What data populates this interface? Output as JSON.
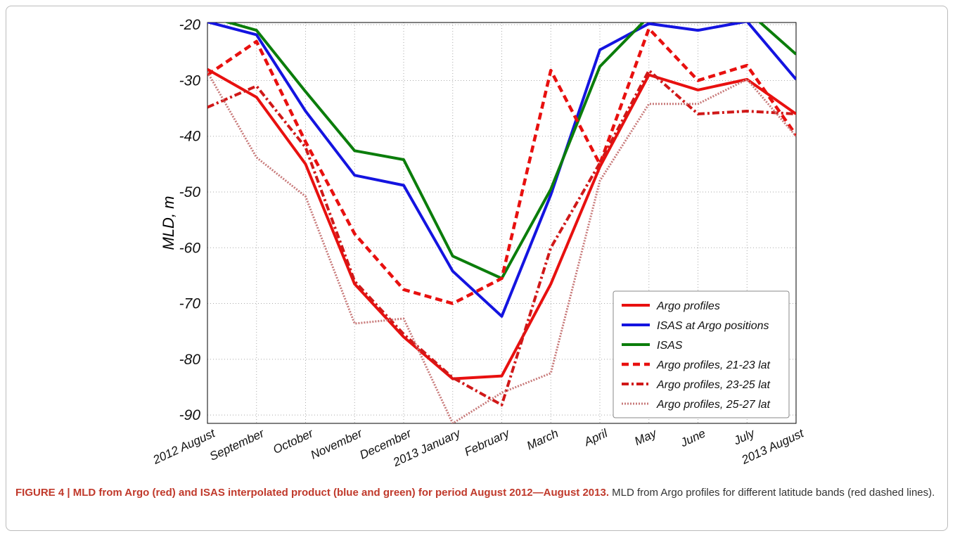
{
  "chart_data": {
    "type": "line",
    "y_label": "MLD, m",
    "categories": [
      "2012 August",
      "September",
      "October",
      "November",
      "December",
      "2013 January",
      "February",
      "March",
      "April",
      "May",
      "June",
      "July",
      "2013 August"
    ],
    "ylim": [
      -91.5,
      -19.6
    ],
    "yticks": [
      -20,
      -30,
      -40,
      -50,
      -60,
      -70,
      -80,
      -90
    ],
    "grid": true,
    "legend": "lower right",
    "series": [
      {
        "name": "Argo profiles",
        "color": "#e8100f",
        "dash": "solid",
        "values": [
          -28,
          -33,
          -45,
          -66.5,
          -76,
          -83.5,
          -83,
          -66.5,
          -45.5,
          -29,
          -31.7,
          -29.8,
          -36
        ]
      },
      {
        "name": "ISAS at Argo positions",
        "color": "#1414e0",
        "dash": "solid",
        "values": [
          -19.5,
          -21.8,
          -35.5,
          -47,
          -48.8,
          -64.2,
          -72.3,
          -50.5,
          -24.5,
          -19.8,
          -21,
          -19.4,
          -29.8
        ]
      },
      {
        "name": "ISAS",
        "color": "#0b7d0b",
        "dash": "solid",
        "values": [
          -18.5,
          -21,
          -32,
          -42.6,
          -44.2,
          -61.5,
          -65.5,
          -49.5,
          -27.5,
          -18.5,
          -18.5,
          -17.5,
          -25.3
        ]
      },
      {
        "name": "Argo profiles, 21-23 lat",
        "color": "#e8100f",
        "dash": "dashed",
        "values": [
          -29,
          -23,
          -41,
          -57.5,
          -67.5,
          -70,
          -65.5,
          -28.2,
          -45,
          -20.7,
          -30,
          -27.3,
          -39.8
        ]
      },
      {
        "name": "Argo profiles, 23-25 lat",
        "color": "#d01818",
        "dash": "dashdot",
        "values": [
          -34.8,
          -31,
          -42,
          -66,
          -75.5,
          -83.3,
          -88.2,
          -60,
          -44.8,
          -28.2,
          -36,
          -35.5,
          -36
        ]
      },
      {
        "name": "Argo profiles, 25-27 lat",
        "color": "#c87a7a",
        "dash": "dotted",
        "values": [
          -28.5,
          -43.8,
          -50.8,
          -73.6,
          -72.7,
          -91.5,
          -86,
          -82.5,
          -48,
          -34.2,
          -34.2,
          -29.8,
          -40
        ]
      }
    ]
  },
  "caption": {
    "label": "FIGURE 4 | MLD from Argo (red) and ISAS interpolated product (blue and green) for period August 2012—August 2013.",
    "text": "MLD from Argo profiles for different latitude bands (red dashed lines)."
  }
}
